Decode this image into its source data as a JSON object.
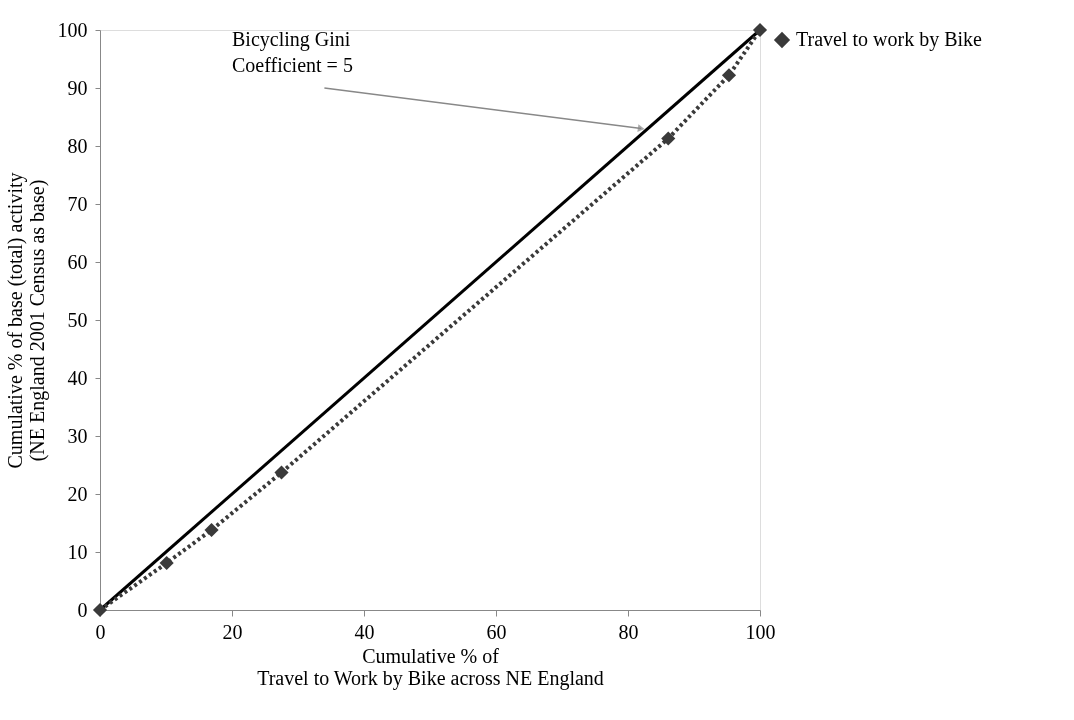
{
  "chart_data": {
    "type": "line",
    "xlabel": "Cumulative % of\nTravel to Work by Bike across NE England",
    "ylabel": "Cumulative % of base (total) activity\n(NE England 2001 Census as base)",
    "series": [
      {
        "type": "line",
        "color": "#000000",
        "line_style": "solid",
        "marker": "none",
        "x": [
          0,
          100
        ],
        "values": [
          0,
          100
        ]
      },
      {
        "type": "line",
        "name": "Travel to work by Bike",
        "color": "#3a3a3a",
        "line_style": "dotted",
        "marker": "diamond",
        "x": [
          0,
          10.1,
          16.9,
          27.5,
          86.1,
          95.3,
          100
        ],
        "values": [
          0,
          8.1,
          13.8,
          23.7,
          81.3,
          92.2,
          100
        ]
      }
    ],
    "xlim": [
      0,
      100
    ],
    "xticks": [
      0,
      20,
      40,
      60,
      80,
      100
    ],
    "ylim": [
      0,
      100
    ],
    "yticks": [
      0,
      10,
      20,
      30,
      40,
      50,
      60,
      70,
      80,
      90,
      100
    ],
    "grid": false,
    "legend": "right",
    "annotations": [
      "Bicycling Gini\nCoefficient = 5"
    ]
  }
}
